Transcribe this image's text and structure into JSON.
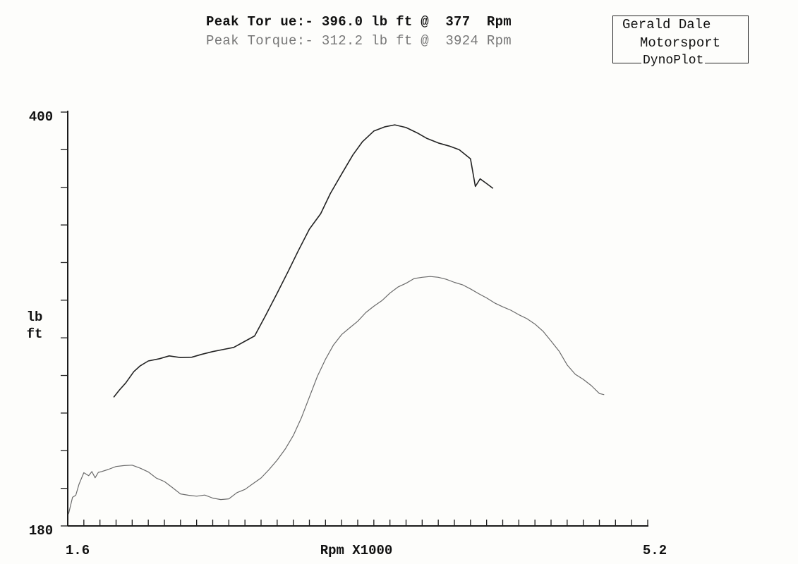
{
  "header": {
    "peak1": "Peak Tor ue:- 396.0 lb ft @  377  Rpm",
    "peak2": "Peak Torque:- 312.2 lb ft @  3924 Rpm"
  },
  "logo": {
    "line1": "Gerald Dale",
    "line2": "Motorsport",
    "line3": "DynoPlot"
  },
  "colors": {
    "run1": "#222222",
    "run2": "#6a6a6a",
    "axis": "#1a1a1a"
  },
  "chart_data": {
    "type": "line",
    "xlabel": "Rpm X1000",
    "ylabel": "lb ft",
    "xlim": [
      1.6,
      5.2
    ],
    "ylim": [
      180,
      400
    ],
    "x_tick_labels": [
      "1.6",
      "5.2"
    ],
    "y_tick_labels": [
      "400",
      "180"
    ],
    "x_minor_tick_step": 0.1,
    "y_minor_tick_step": 20,
    "grid": false,
    "series": [
      {
        "color": "#222222",
        "points": [
          [
            1.885,
            248.4
          ],
          [
            1.92,
            252.2
          ],
          [
            1.96,
            256.0
          ],
          [
            2.01,
            262.0
          ],
          [
            2.05,
            265.1
          ],
          [
            2.1,
            267.7
          ],
          [
            2.17,
            268.9
          ],
          [
            2.23,
            270.4
          ],
          [
            2.3,
            269.5
          ],
          [
            2.37,
            269.7
          ],
          [
            2.43,
            271.2
          ],
          [
            2.5,
            272.7
          ],
          [
            2.57,
            273.9
          ],
          [
            2.63,
            274.9
          ],
          [
            2.7,
            278.2
          ],
          [
            2.76,
            281.0
          ],
          [
            2.83,
            292.2
          ],
          [
            2.9,
            303.7
          ],
          [
            2.97,
            315.6
          ],
          [
            3.03,
            326.1
          ],
          [
            3.1,
            337.8
          ],
          [
            3.17,
            346.0
          ],
          [
            3.23,
            356.7
          ],
          [
            3.3,
            367.1
          ],
          [
            3.37,
            377.2
          ],
          [
            3.43,
            384.3
          ],
          [
            3.5,
            389.9
          ],
          [
            3.57,
            392.2
          ],
          [
            3.63,
            393.2
          ],
          [
            3.7,
            391.8
          ],
          [
            3.77,
            388.9
          ],
          [
            3.83,
            386.0
          ],
          [
            3.9,
            383.6
          ],
          [
            3.97,
            381.9
          ],
          [
            4.03,
            380.0
          ],
          [
            4.1,
            375.2
          ],
          [
            4.13,
            360.5
          ],
          [
            4.16,
            364.5
          ],
          [
            4.2,
            362.0
          ],
          [
            4.24,
            359.4
          ]
        ]
      },
      {
        "color": "#6a6a6a",
        "points": [
          [
            1.605,
            186.3
          ],
          [
            1.63,
            195.2
          ],
          [
            1.65,
            196.3
          ],
          [
            1.67,
            202.2
          ],
          [
            1.7,
            208.3
          ],
          [
            1.73,
            206.7
          ],
          [
            1.75,
            208.9
          ],
          [
            1.77,
            205.6
          ],
          [
            1.79,
            208.5
          ],
          [
            1.81,
            208.9
          ],
          [
            1.85,
            210.0
          ],
          [
            1.9,
            211.6
          ],
          [
            1.95,
            212.1
          ],
          [
            2.0,
            212.3
          ],
          [
            2.05,
            210.7
          ],
          [
            2.1,
            208.7
          ],
          [
            2.15,
            205.4
          ],
          [
            2.2,
            203.6
          ],
          [
            2.25,
            200.4
          ],
          [
            2.3,
            197.0
          ],
          [
            2.35,
            196.3
          ],
          [
            2.4,
            195.8
          ],
          [
            2.45,
            196.4
          ],
          [
            2.5,
            194.8
          ],
          [
            2.55,
            194.0
          ],
          [
            2.6,
            194.4
          ],
          [
            2.65,
            197.7
          ],
          [
            2.7,
            199.4
          ],
          [
            2.75,
            202.5
          ],
          [
            2.8,
            205.5
          ],
          [
            2.85,
            210.0
          ],
          [
            2.9,
            215.0
          ],
          [
            2.95,
            220.9
          ],
          [
            3.0,
            228.1
          ],
          [
            3.05,
            237.4
          ],
          [
            3.1,
            248.5
          ],
          [
            3.15,
            259.6
          ],
          [
            3.2,
            268.6
          ],
          [
            3.25,
            276.3
          ],
          [
            3.3,
            281.7
          ],
          [
            3.35,
            285.3
          ],
          [
            3.4,
            288.8
          ],
          [
            3.45,
            293.4
          ],
          [
            3.5,
            296.8
          ],
          [
            3.55,
            299.8
          ],
          [
            3.6,
            303.8
          ],
          [
            3.65,
            307.0
          ],
          [
            3.7,
            309.0
          ],
          [
            3.75,
            311.5
          ],
          [
            3.8,
            312.2
          ],
          [
            3.85,
            312.6
          ],
          [
            3.9,
            312.2
          ],
          [
            3.95,
            311.1
          ],
          [
            4.0,
            309.5
          ],
          [
            4.05,
            308.2
          ],
          [
            4.1,
            306.0
          ],
          [
            4.15,
            303.5
          ],
          [
            4.2,
            301.2
          ],
          [
            4.25,
            298.5
          ],
          [
            4.3,
            296.5
          ],
          [
            4.35,
            294.7
          ],
          [
            4.4,
            292.3
          ],
          [
            4.45,
            290.2
          ],
          [
            4.5,
            287.3
          ],
          [
            4.55,
            283.5
          ],
          [
            4.6,
            278.3
          ],
          [
            4.65,
            272.9
          ],
          [
            4.7,
            265.6
          ],
          [
            4.75,
            260.6
          ],
          [
            4.8,
            257.9
          ],
          [
            4.85,
            254.6
          ],
          [
            4.9,
            250.4
          ],
          [
            4.93,
            249.8
          ]
        ]
      }
    ]
  }
}
